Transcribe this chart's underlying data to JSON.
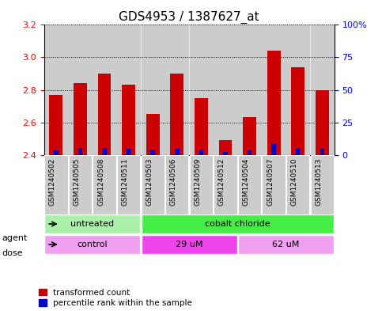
{
  "title": "GDS4953 / 1387627_at",
  "samples": [
    "GSM1240502",
    "GSM1240505",
    "GSM1240508",
    "GSM1240511",
    "GSM1240503",
    "GSM1240506",
    "GSM1240509",
    "GSM1240512",
    "GSM1240504",
    "GSM1240507",
    "GSM1240510",
    "GSM1240513"
  ],
  "transformed_counts": [
    2.77,
    2.84,
    2.9,
    2.83,
    2.65,
    2.9,
    2.75,
    2.49,
    2.63,
    3.04,
    2.94,
    2.8
  ],
  "percentile_ranks": [
    3.5,
    5.0,
    5.0,
    4.5,
    3.5,
    4.5,
    4.0,
    2.5,
    3.5,
    8.0,
    5.5,
    4.5
  ],
  "bar_base": 2.4,
  "ylim_left": [
    2.4,
    3.2
  ],
  "ylim_right": [
    0,
    100
  ],
  "yticks_left": [
    2.4,
    2.6,
    2.8,
    3.0,
    3.2
  ],
  "yticks_right": [
    0,
    25,
    50,
    75,
    100
  ],
  "ytick_labels_right": [
    "0",
    "25",
    "50",
    "75",
    "100%"
  ],
  "agent_groups": [
    {
      "label": "untreated",
      "start": 0,
      "end": 4,
      "color": "#aaf0aa"
    },
    {
      "label": "cobalt chloride",
      "start": 4,
      "end": 12,
      "color": "#44ee44"
    }
  ],
  "dose_groups": [
    {
      "label": "control",
      "start": 0,
      "end": 4,
      "color": "#f0a0f0"
    },
    {
      "label": "29 uM",
      "start": 4,
      "end": 8,
      "color": "#ee44ee"
    },
    {
      "label": "62 uM",
      "start": 8,
      "end": 12,
      "color": "#f0a0f0"
    }
  ],
  "bar_color_red": "#cc0000",
  "bar_color_blue": "#0000cc",
  "bar_width": 0.55,
  "blue_bar_width": 0.18,
  "bg_color_bars": "#cccccc",
  "legend_red": "transformed count",
  "legend_blue": "percentile rank within the sample",
  "grid_color": "black",
  "title_fontsize": 11,
  "label_agent": "agent",
  "label_dose": "dose"
}
